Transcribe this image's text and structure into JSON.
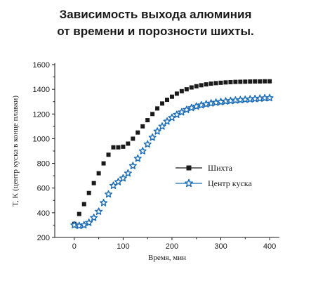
{
  "chart_data": {
    "type": "scatter",
    "title_lines": [
      "Зависимость выхода алюминия",
      "от времени и порозности шихты."
    ],
    "xlabel": "Время, мин",
    "ylabel": "T, K (центр куска в конце плавки)",
    "xlim": [
      -40,
      420
    ],
    "ylim": [
      200,
      1600
    ],
    "xticks": [
      0,
      100,
      200,
      300,
      400
    ],
    "yticks": [
      200,
      400,
      600,
      800,
      1000,
      1200,
      1400,
      1600
    ],
    "grid": false,
    "legend_position": "right",
    "series": [
      {
        "name": "Шихта",
        "marker": "square",
        "color": "#1a1a1a",
        "x": [
          0,
          10,
          20,
          30,
          40,
          50,
          60,
          70,
          80,
          90,
          100,
          110,
          120,
          130,
          140,
          150,
          160,
          170,
          180,
          190,
          200,
          210,
          220,
          230,
          240,
          250,
          260,
          270,
          280,
          290,
          300,
          310,
          320,
          330,
          340,
          350,
          360,
          370,
          380,
          390,
          400
        ],
        "y": [
          310,
          390,
          470,
          560,
          640,
          720,
          800,
          870,
          930,
          930,
          935,
          960,
          1000,
          1050,
          1100,
          1150,
          1200,
          1245,
          1285,
          1315,
          1340,
          1365,
          1385,
          1400,
          1415,
          1425,
          1433,
          1440,
          1446,
          1450,
          1453,
          1456,
          1458,
          1460,
          1461,
          1462,
          1463,
          1464,
          1464,
          1465,
          1465
        ]
      },
      {
        "name": "Центр куска",
        "marker": "star",
        "color": "#1f6fb8",
        "x": [
          0,
          10,
          20,
          30,
          40,
          50,
          60,
          70,
          80,
          90,
          100,
          110,
          120,
          130,
          140,
          150,
          160,
          170,
          180,
          190,
          200,
          210,
          220,
          230,
          240,
          250,
          260,
          270,
          280,
          290,
          300,
          310,
          320,
          330,
          340,
          350,
          360,
          370,
          380,
          390,
          400
        ],
        "y": [
          300,
          295,
          300,
          320,
          360,
          410,
          480,
          550,
          620,
          650,
          680,
          720,
          780,
          840,
          900,
          955,
          1010,
          1060,
          1100,
          1140,
          1170,
          1195,
          1215,
          1235,
          1250,
          1262,
          1272,
          1280,
          1287,
          1293,
          1298,
          1303,
          1307,
          1311,
          1314,
          1317,
          1320,
          1323,
          1326,
          1329,
          1330
        ]
      }
    ]
  }
}
